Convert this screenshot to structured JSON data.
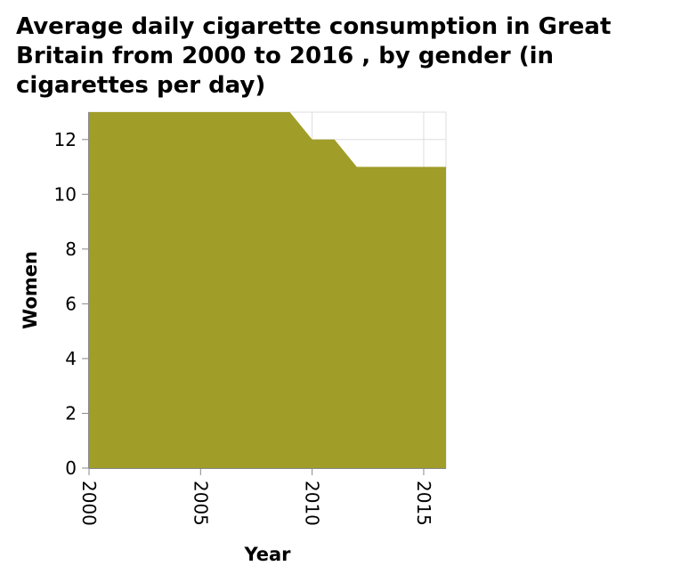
{
  "chart_data": {
    "type": "area",
    "title": "Average daily cigarette consumption in Great Britain from 2000 to 2016 , by gender (in cigarettes per day)",
    "xlabel": "Year",
    "ylabel": "Women",
    "x": [
      2000,
      2001,
      2002,
      2003,
      2004,
      2005,
      2006,
      2007,
      2008,
      2009,
      2010,
      2011,
      2012,
      2013,
      2014,
      2015,
      2016
    ],
    "series": [
      {
        "values": [
          13,
          13,
          13,
          13,
          13,
          13,
          13,
          13,
          13,
          13,
          12,
          12,
          11,
          11,
          11,
          11,
          11
        ],
        "color": "#a09d28"
      }
    ],
    "xlim": [
      2000,
      2016
    ],
    "ylim": [
      0,
      13
    ],
    "xticks": [
      "2000",
      "2005",
      "2010",
      "2015"
    ],
    "yticks": [
      "0",
      "2",
      "4",
      "6",
      "8",
      "10",
      "12"
    ],
    "grid": true
  }
}
